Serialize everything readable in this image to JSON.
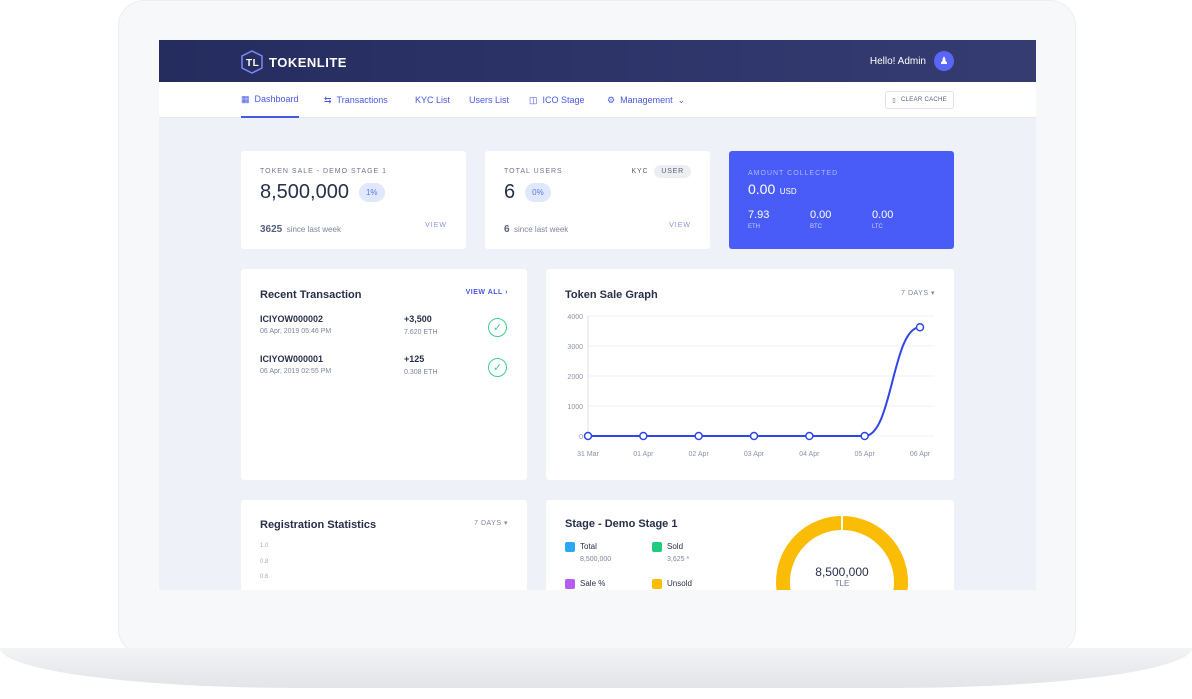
{
  "header": {
    "brand": "TOKENLITE",
    "greeting": "Hello! Admin"
  },
  "nav": {
    "items": [
      {
        "label": "Dashboard",
        "icon": "grid-icon"
      },
      {
        "label": "Transactions",
        "icon": "swap-icon"
      },
      {
        "label": "KYC List"
      },
      {
        "label": "Users List"
      },
      {
        "label": "ICO Stage",
        "icon": "coins-icon"
      },
      {
        "label": "Management",
        "icon": "gear-icon"
      }
    ],
    "clear_cache": "CLEAR CACHE"
  },
  "token_sale": {
    "label": "TOKEN SALE - DEMO STAGE 1",
    "value": "8,500,000",
    "pct": "1%",
    "since_value": "3625",
    "since_label": "since last week",
    "view": "VIEW"
  },
  "users": {
    "label": "TOTAL USERS",
    "kyc": "KYC",
    "user": "USER",
    "value": "6",
    "pct": "0%",
    "since_value": "6",
    "since_label": "since last week",
    "view": "VIEW"
  },
  "amount": {
    "label": "AMOUNT COLLECTED",
    "value": "0.00",
    "unit": "USD",
    "coins": [
      {
        "value": "7.93",
        "unit": "ETH"
      },
      {
        "value": "0.00",
        "unit": "BTC"
      },
      {
        "value": "0.00",
        "unit": "LTC"
      }
    ],
    "color": "#4a5cf7"
  },
  "recent": {
    "title": "Recent Transaction",
    "view_all": "VIEW ALL",
    "items": [
      {
        "id": "ICIYOW000002",
        "date": "06 Apr, 2019 05:46 PM",
        "amount": "+3,500",
        "eth": "7.620 ETH"
      },
      {
        "id": "ICIYOW000001",
        "date": "06 Apr, 2019 02:55 PM",
        "amount": "+125",
        "eth": "0.308 ETH"
      }
    ]
  },
  "chart_data": {
    "type": "line",
    "title": "Token Sale Graph",
    "range": "7 DAYS",
    "categories": [
      "31 Mar",
      "01 Apr",
      "02 Apr",
      "03 Apr",
      "04 Apr",
      "05 Apr",
      "06 Apr"
    ],
    "values": [
      0,
      0,
      0,
      0,
      0,
      0,
      3625
    ],
    "ylim": [
      0,
      4000
    ],
    "yticks": [
      "0",
      "1000",
      "2000",
      "3000",
      "4000"
    ],
    "grid": true,
    "color": "#2f45e8"
  },
  "registration": {
    "title": "Registration Statistics",
    "range": "7 DAYS",
    "yticks": [
      "1.0",
      "0.8",
      "0.6"
    ]
  },
  "stage": {
    "title": "Stage - Demo Stage 1",
    "legend": [
      {
        "label": "Total",
        "value": "8,500,000",
        "color": "#2aa8f5"
      },
      {
        "label": "Sold",
        "value": "3,625 *",
        "color": "#1ecb7f"
      },
      {
        "label": "Sale %",
        "value": "",
        "color": "#b65cf0"
      },
      {
        "label": "Unsold",
        "value": "",
        "color": "#fbbc05"
      }
    ],
    "center_value": "8,500,000",
    "center_unit": "TLE"
  }
}
